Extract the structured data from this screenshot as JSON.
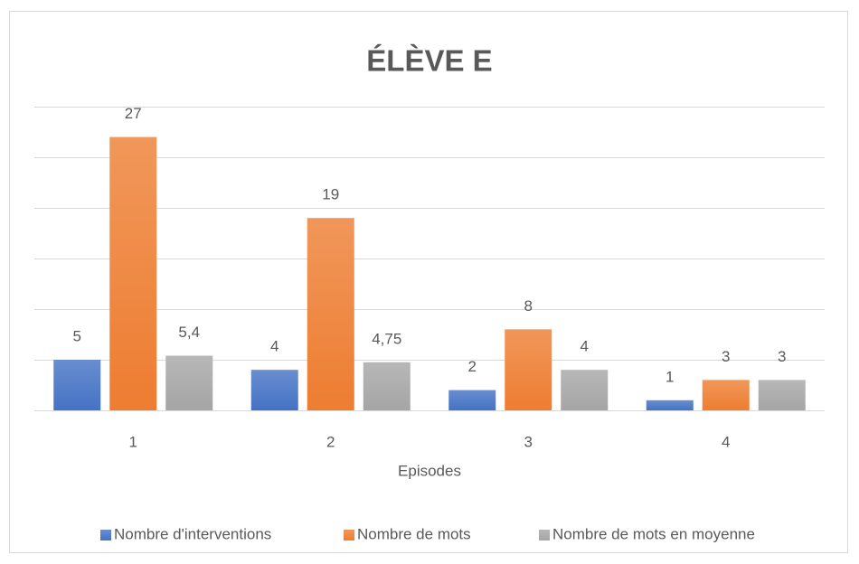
{
  "chart_data": {
    "type": "bar",
    "title": "ÉLÈVE E",
    "x_label": "Episodes",
    "categories": [
      "1",
      "2",
      "3",
      "4"
    ],
    "series": [
      {
        "name": "Nombre d'interventions",
        "color": "#4472c4",
        "values": [
          5,
          4,
          2,
          1
        ]
      },
      {
        "name": "Nombre de mots",
        "color": "#ed7d31",
        "values": [
          27,
          19,
          8,
          3
        ]
      },
      {
        "name": "Nombre de mots en moyenne",
        "color": "#a5a5a5",
        "values": [
          5.4,
          4.75,
          4,
          3
        ],
        "value_labels": [
          "5,4",
          "4,75",
          "4",
          "3"
        ]
      }
    ],
    "ylim": [
      0,
      30
    ],
    "yticks": [
      0,
      5,
      10,
      15,
      20,
      25,
      30
    ],
    "grid": true,
    "legend": "bottom"
  }
}
